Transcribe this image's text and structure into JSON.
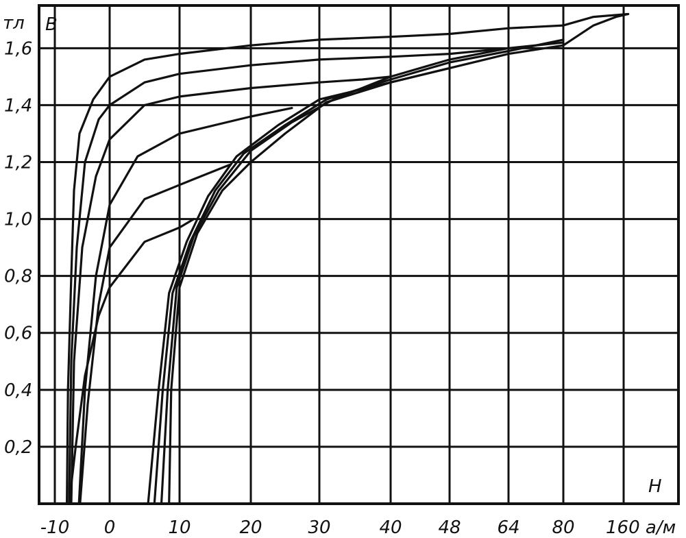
{
  "chart_data": {
    "type": "line",
    "title": "",
    "xlabel": "H",
    "ylabel": "B",
    "yunit": "тл",
    "xunit": "а/м",
    "x_scale": "piecewise (non-uniform tick spacing)",
    "x_tick_labels": [
      "-10",
      "0",
      "10",
      "20",
      "30",
      "40",
      "48",
      "64",
      "80",
      "160 а/м"
    ],
    "x_tick_values": [
      -10,
      0,
      10,
      20,
      30,
      40,
      48,
      64,
      80,
      160
    ],
    "y_tick_labels": [
      "0,2",
      "0,4",
      "0,6",
      "0,8",
      "1,0",
      "1,2",
      "1,4",
      "1,6"
    ],
    "y_tick_values": [
      0.2,
      0.4,
      0.6,
      0.8,
      1.0,
      1.2,
      1.4,
      1.6
    ],
    "ylim": [
      0,
      1.75
    ],
    "xlim": [
      -10,
      170
    ],
    "grid": true,
    "legend": "none",
    "series": [
      {
        "points": [
          [
            -7.8,
            0
          ],
          [
            -7.6,
            0.4
          ],
          [
            -7,
            0.8
          ],
          [
            -6.5,
            1.1
          ],
          [
            -5.5,
            1.3
          ],
          [
            -3,
            1.42
          ],
          [
            0,
            1.5
          ],
          [
            5,
            1.56
          ],
          [
            10,
            1.58
          ],
          [
            20,
            1.61
          ],
          [
            30,
            1.63
          ],
          [
            40,
            1.64
          ],
          [
            48,
            1.65
          ],
          [
            64,
            1.67
          ],
          [
            80,
            1.68
          ],
          [
            120,
            1.71
          ],
          [
            166,
            1.72
          ]
        ]
      },
      {
        "points": [
          [
            -7.4,
            0
          ],
          [
            -7,
            0.5
          ],
          [
            -6,
            0.9
          ],
          [
            -4.5,
            1.2
          ],
          [
            -2,
            1.35
          ],
          [
            0,
            1.4
          ],
          [
            5,
            1.48
          ],
          [
            10,
            1.51
          ],
          [
            20,
            1.54
          ],
          [
            30,
            1.56
          ],
          [
            40,
            1.57
          ],
          [
            48,
            1.58
          ],
          [
            64,
            1.6
          ]
        ]
      },
      {
        "points": [
          [
            -7,
            0
          ],
          [
            -6.5,
            0.5
          ],
          [
            -5,
            0.9
          ],
          [
            -2.5,
            1.15
          ],
          [
            0,
            1.28
          ],
          [
            5,
            1.4
          ],
          [
            10,
            1.43
          ],
          [
            20,
            1.46
          ],
          [
            30,
            1.48
          ],
          [
            36,
            1.49
          ],
          [
            40,
            1.5
          ]
        ]
      },
      {
        "points": [
          [
            -5.6,
            0
          ],
          [
            -4.5,
            0.4
          ],
          [
            -2.5,
            0.8
          ],
          [
            0,
            1.05
          ],
          [
            4,
            1.22
          ],
          [
            10,
            1.3
          ],
          [
            20,
            1.36
          ],
          [
            26,
            1.39
          ]
        ]
      },
      {
        "points": [
          [
            -5.4,
            0
          ],
          [
            -4,
            0.35
          ],
          [
            -2,
            0.7
          ],
          [
            0,
            0.9
          ],
          [
            5,
            1.07
          ],
          [
            12,
            1.14
          ],
          [
            17,
            1.19
          ]
        ]
      },
      {
        "points": [
          [
            -7.4,
            0
          ],
          [
            -6.2,
            0.2
          ],
          [
            -4.5,
            0.45
          ],
          [
            -2,
            0.66
          ],
          [
            0,
            0.76
          ],
          [
            5,
            0.92
          ],
          [
            10,
            0.97
          ],
          [
            12,
            1.0
          ]
        ]
      },
      {
        "points": [
          [
            5.5,
            0
          ],
          [
            7,
            0.4
          ],
          [
            8.5,
            0.74
          ],
          [
            11,
            0.92
          ],
          [
            14,
            1.08
          ],
          [
            18,
            1.22
          ],
          [
            24,
            1.33
          ],
          [
            30,
            1.42
          ],
          [
            40,
            1.48
          ],
          [
            48,
            1.53
          ],
          [
            64,
            1.58
          ],
          [
            80,
            1.61
          ],
          [
            120,
            1.68
          ],
          [
            150,
            1.71
          ],
          [
            166,
            1.72
          ]
        ]
      },
      {
        "points": [
          [
            6.4,
            0
          ],
          [
            7.6,
            0.4
          ],
          [
            9,
            0.74
          ],
          [
            11.5,
            0.92
          ],
          [
            15,
            1.1
          ],
          [
            19,
            1.23
          ],
          [
            25,
            1.33
          ],
          [
            31,
            1.42
          ],
          [
            40,
            1.49
          ],
          [
            48,
            1.55
          ],
          [
            64,
            1.59
          ],
          [
            80,
            1.63
          ]
        ]
      },
      {
        "points": [
          [
            7.4,
            0
          ],
          [
            8.3,
            0.4
          ],
          [
            9.6,
            0.76
          ],
          [
            12,
            0.94
          ],
          [
            15.5,
            1.1
          ],
          [
            20,
            1.24
          ],
          [
            26,
            1.34
          ],
          [
            32,
            1.42
          ],
          [
            40,
            1.5
          ],
          [
            48,
            1.56
          ],
          [
            64,
            1.6
          ],
          [
            80,
            1.62
          ]
        ]
      },
      {
        "points": [
          [
            8.5,
            0
          ],
          [
            8.8,
            0.4
          ],
          [
            10,
            0.76
          ],
          [
            12.5,
            0.95
          ],
          [
            16,
            1.1
          ],
          [
            20,
            1.2
          ],
          [
            25,
            1.3
          ],
          [
            31,
            1.41
          ],
          [
            40,
            1.48
          ],
          [
            48,
            1.53
          ]
        ]
      }
    ]
  }
}
